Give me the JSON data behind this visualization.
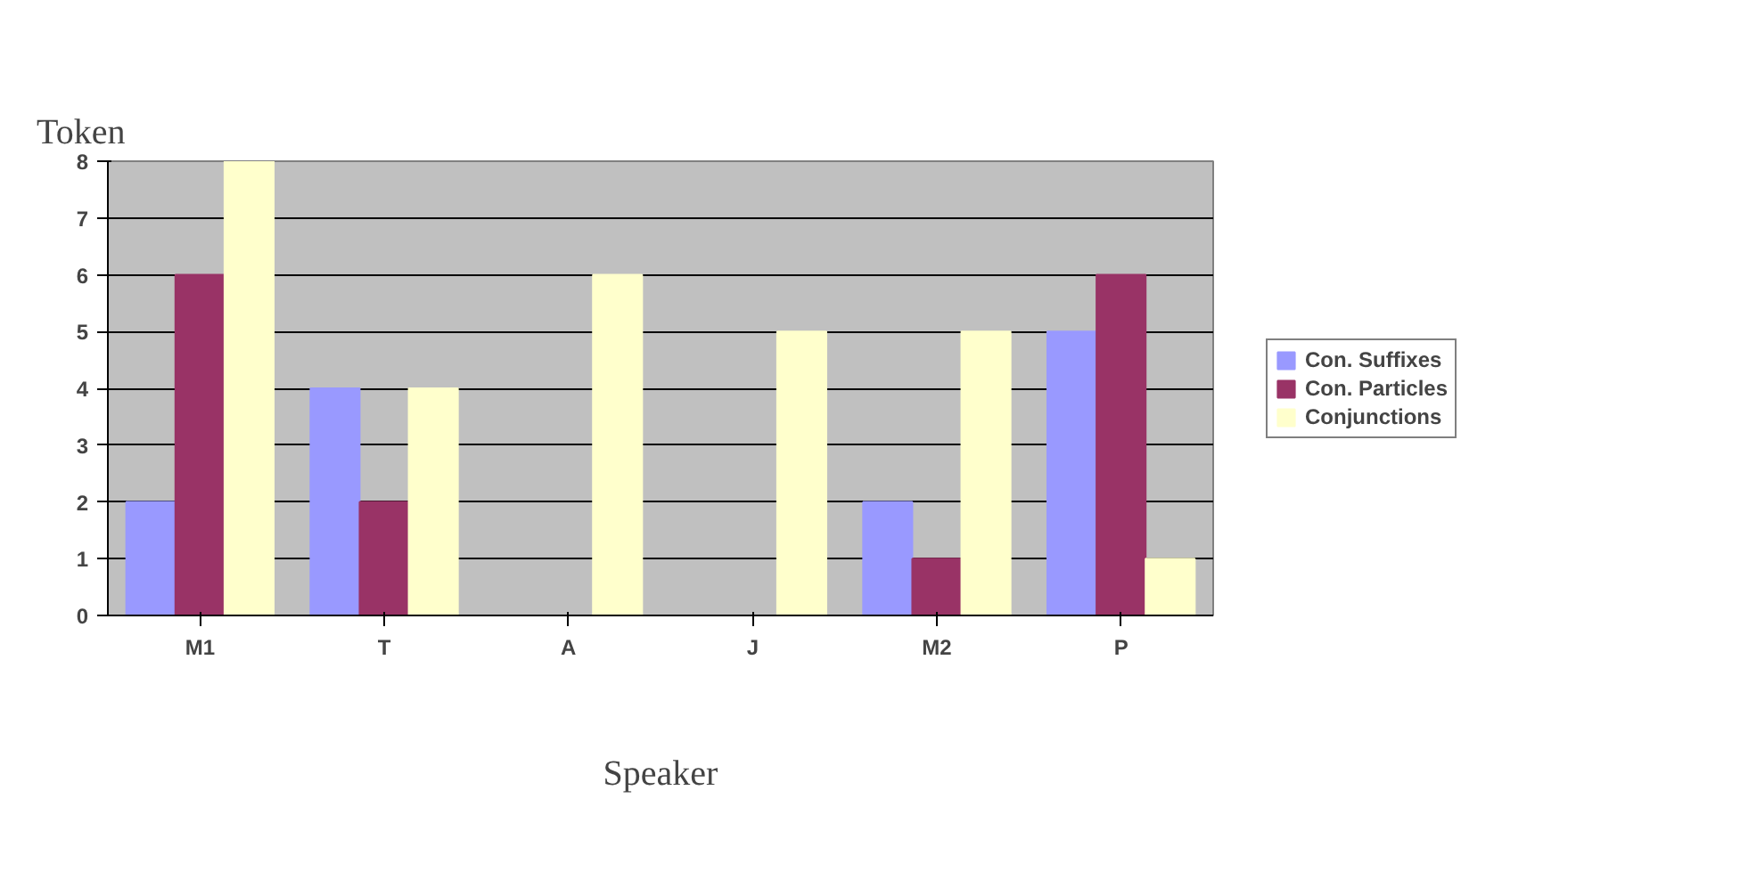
{
  "chart_data": {
    "type": "bar",
    "ylabel": "Token",
    "xlabel": "Speaker",
    "categories": [
      "M1",
      "T",
      "A",
      "J",
      "M2",
      "P"
    ],
    "series": [
      {
        "name": "Con. Suffixes",
        "color": "#9999ff",
        "values": [
          2,
          4,
          0,
          0,
          2,
          5
        ]
      },
      {
        "name": "Con. Particles",
        "color": "#993366",
        "values": [
          6,
          2,
          0,
          0,
          1,
          6
        ]
      },
      {
        "name": "Conjunctions",
        "color": "#ffffcc",
        "values": [
          8,
          4,
          6,
          5,
          5,
          1
        ]
      }
    ],
    "ylim": [
      0,
      8
    ],
    "yticks": [
      0,
      1,
      2,
      3,
      4,
      5,
      6,
      7,
      8
    ],
    "grid": "y",
    "legend": "right"
  }
}
